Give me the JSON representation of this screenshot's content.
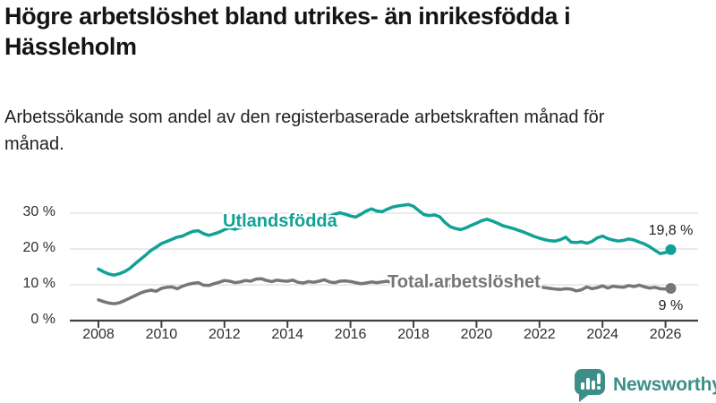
{
  "page": {
    "title": "Högre arbetslöshet bland utrikes- än inrikesfödda i Hässleholm",
    "subtitle": "Arbetssökande som andel av den registerbaserade arbetskraften månad för månad."
  },
  "branding": {
    "logo_text": "Newsworthy",
    "logo_icon": "bar-chart-speech-bubble-icon",
    "logo_color": "#3c8f89"
  },
  "chart_data": {
    "type": "line",
    "title": "Högre arbetslöshet bland utrikes- än inrikesfödda i Hässleholm",
    "subtitle": "Arbetssökande som andel av den registerbaserade arbetskraften månad för månad.",
    "x_unit": "year",
    "x_start": 2008,
    "x_step_years": 0.16667,
    "ylim": [
      0,
      33
    ],
    "grid": "horizontal",
    "legend_position": "inline-labels",
    "axis_color": "#404040",
    "grid_color": "#dedede",
    "yticks": [
      {
        "value": 30,
        "label": "30 %"
      },
      {
        "value": 20,
        "label": "20 %"
      },
      {
        "value": 10,
        "label": "10 %"
      },
      {
        "value": 0,
        "label": "0 %"
      }
    ],
    "xticks": [
      {
        "value": 2008,
        "label": "2008"
      },
      {
        "value": 2010,
        "label": "2010"
      },
      {
        "value": 2012,
        "label": "2012"
      },
      {
        "value": 2014,
        "label": "2014"
      },
      {
        "value": 2016,
        "label": "2016"
      },
      {
        "value": 2018,
        "label": "2018"
      },
      {
        "value": 2020,
        "label": "2020"
      },
      {
        "value": 2022,
        "label": "2022"
      },
      {
        "value": 2024,
        "label": "2024"
      },
      {
        "value": 2026,
        "label": "2026"
      }
    ],
    "series": [
      {
        "name": "Utlandsfödda",
        "color": "#10a296",
        "end_label": "19,8 %",
        "end_value": 19.8,
        "values": [
          14.4,
          13.6,
          13.0,
          12.7,
          13.1,
          13.7,
          14.6,
          15.9,
          17.1,
          18.3,
          19.6,
          20.5,
          21.5,
          22.1,
          22.7,
          23.3,
          23.6,
          24.3,
          24.9,
          25.1,
          24.3,
          23.8,
          24.2,
          24.7,
          25.4,
          25.9,
          25.5,
          26.0,
          26.4,
          26.1,
          26.6,
          27.1,
          26.7,
          27.2,
          27.6,
          27.3,
          27.7,
          28.1,
          27.7,
          28.2,
          28.6,
          28.4,
          28.9,
          29.4,
          29.1,
          29.7,
          30.1,
          29.7,
          29.2,
          28.9,
          29.7,
          30.6,
          31.2,
          30.6,
          30.4,
          31.1,
          31.7,
          32.0,
          32.2,
          32.4,
          31.9,
          30.7,
          29.6,
          29.3,
          29.5,
          29.0,
          27.4,
          26.2,
          25.7,
          25.4,
          25.9,
          26.6,
          27.2,
          27.9,
          28.3,
          27.8,
          27.2,
          26.5,
          26.1,
          25.7,
          25.2,
          24.7,
          24.1,
          23.5,
          23.0,
          22.6,
          22.3,
          22.2,
          22.6,
          23.3,
          21.9,
          21.8,
          22.0,
          21.6,
          22.1,
          23.1,
          23.6,
          22.9,
          22.5,
          22.2,
          22.4,
          22.8,
          22.5,
          21.9,
          21.4,
          20.6,
          19.6,
          18.7,
          19.0,
          19.8
        ]
      },
      {
        "name": "Total arbetslöshet",
        "color": "#76767a",
        "end_label": "9 %",
        "end_value": 9.0,
        "values": [
          5.8,
          5.3,
          4.9,
          4.7,
          5.0,
          5.6,
          6.3,
          7.0,
          7.7,
          8.2,
          8.5,
          8.2,
          9.0,
          9.3,
          9.4,
          8.9,
          9.6,
          10.1,
          10.4,
          10.6,
          9.9,
          9.8,
          10.3,
          10.7,
          11.2,
          11.0,
          10.6,
          10.8,
          11.2,
          11.0,
          11.6,
          11.7,
          11.2,
          10.9,
          11.3,
          11.1,
          11.0,
          11.3,
          10.7,
          10.5,
          10.9,
          10.7,
          11.0,
          11.4,
          10.8,
          10.6,
          11.0,
          11.1,
          10.9,
          10.6,
          10.3,
          10.5,
          10.8,
          10.6,
          10.8,
          11.0,
          10.5,
          10.3,
          10.6,
          10.4,
          10.5,
          10.2,
          10.0,
          9.9,
          10.2,
          10.0,
          10.0,
          9.8,
          9.6,
          9.5,
          9.8,
          10.2,
          10.7,
          11.1,
          11.4,
          11.1,
          10.9,
          10.7,
          10.8,
          10.4,
          10.1,
          9.9,
          9.7,
          9.5,
          9.4,
          9.2,
          9.0,
          8.8,
          8.7,
          8.9,
          8.8,
          8.3,
          8.6,
          9.4,
          8.9,
          9.2,
          9.7,
          9.1,
          9.6,
          9.4,
          9.3,
          9.8,
          9.5,
          9.9,
          9.4,
          9.1,
          9.3,
          8.9,
          8.8,
          9.0
        ]
      }
    ]
  }
}
